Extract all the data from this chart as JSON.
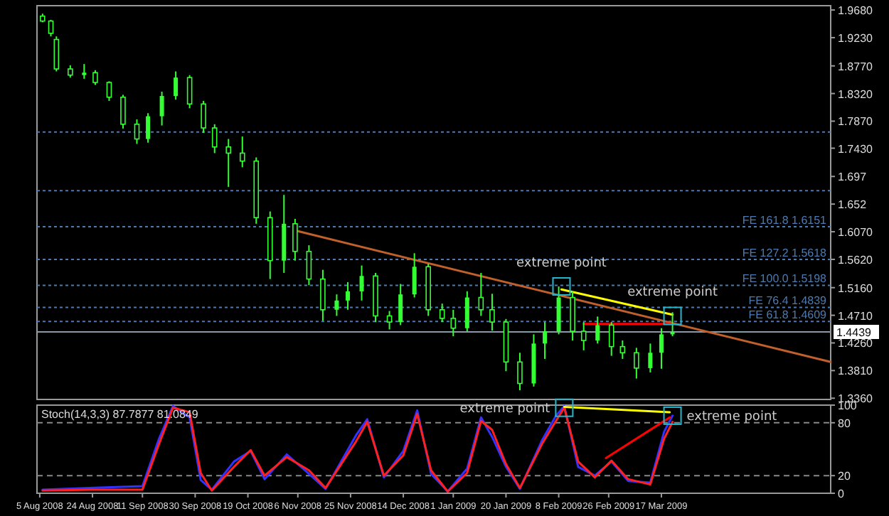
{
  "chart_data": [
    {
      "type": "candlestick",
      "color": "#33ff33",
      "tick_labels": "y",
      "xlim": [
        "2008-08-04",
        "2009-05-17"
      ],
      "ylim": [
        1.334,
        1.975
      ],
      "x": [
        "2008-08-06",
        "2008-08-09",
        "2008-08-11",
        "2008-08-16",
        "2008-08-21",
        "2008-08-25",
        "2008-08-30",
        "2008-09-04",
        "2008-09-09",
        "2008-09-13",
        "2008-09-18",
        "2008-09-23",
        "2008-09-28",
        "2008-10-03",
        "2008-10-07",
        "2008-10-12",
        "2008-10-17",
        "2008-10-22",
        "2008-10-27",
        "2008-11-01",
        "2008-11-05",
        "2008-11-10",
        "2008-11-15",
        "2008-11-20",
        "2008-11-24",
        "2008-11-29",
        "2008-12-04",
        "2008-12-09",
        "2008-12-13",
        "2008-12-18",
        "2008-12-23",
        "2008-12-28",
        "2009-01-01",
        "2009-01-06",
        "2009-01-11",
        "2009-01-15",
        "2009-01-20",
        "2009-01-25",
        "2009-01-30",
        "2009-02-03",
        "2009-02-08",
        "2009-02-13",
        "2009-02-17",
        "2009-02-22",
        "2009-02-27",
        "2009-03-03",
        "2009-03-08",
        "2009-03-13",
        "2009-03-17",
        "2009-03-21"
      ],
      "ohlc": [
        [
          1.958,
          1.962,
          1.948,
          1.95
        ],
        [
          1.95,
          1.952,
          1.925,
          1.93
        ],
        [
          1.92,
          1.925,
          1.868,
          1.872
        ],
        [
          1.872,
          1.878,
          1.858,
          1.862
        ],
        [
          1.862,
          1.88,
          1.856,
          1.866
        ],
        [
          1.866,
          1.87,
          1.846,
          1.85
        ],
        [
          1.85,
          1.852,
          1.82,
          1.826
        ],
        [
          1.826,
          1.83,
          1.775,
          1.782
        ],
        [
          1.782,
          1.79,
          1.75,
          1.758
        ],
        [
          1.758,
          1.8,
          1.752,
          1.795
        ],
        [
          1.795,
          1.835,
          1.78,
          1.828
        ],
        [
          1.828,
          1.868,
          1.822,
          1.858
        ],
        [
          1.858,
          1.862,
          1.808,
          1.815
        ],
        [
          1.815,
          1.82,
          1.768,
          1.776
        ],
        [
          1.776,
          1.782,
          1.735,
          1.745
        ],
        [
          1.745,
          1.758,
          1.68,
          1.735
        ],
        [
          1.735,
          1.762,
          1.712,
          1.722
        ],
        [
          1.722,
          1.728,
          1.62,
          1.63
        ],
        [
          1.63,
          1.64,
          1.53,
          1.56
        ],
        [
          1.56,
          1.667,
          1.54,
          1.62
        ],
        [
          1.62,
          1.628,
          1.56,
          1.575
        ],
        [
          1.575,
          1.585,
          1.52,
          1.53
        ],
        [
          1.53,
          1.545,
          1.462,
          1.48
        ],
        [
          1.48,
          1.505,
          1.47,
          1.495
        ],
        [
          1.495,
          1.525,
          1.48,
          1.51
        ],
        [
          1.51,
          1.552,
          1.495,
          1.535
        ],
        [
          1.535,
          1.54,
          1.46,
          1.47
        ],
        [
          1.47,
          1.478,
          1.448,
          1.46
        ],
        [
          1.46,
          1.522,
          1.455,
          1.505
        ],
        [
          1.505,
          1.572,
          1.5,
          1.55
        ],
        [
          1.55,
          1.555,
          1.47,
          1.48
        ],
        [
          1.48,
          1.49,
          1.46,
          1.466
        ],
        [
          1.466,
          1.48,
          1.437,
          1.45
        ],
        [
          1.45,
          1.51,
          1.445,
          1.5
        ],
        [
          1.5,
          1.54,
          1.47,
          1.48
        ],
        [
          1.48,
          1.506,
          1.446,
          1.46
        ],
        [
          1.46,
          1.465,
          1.38,
          1.395
        ],
        [
          1.395,
          1.41,
          1.349,
          1.36
        ],
        [
          1.36,
          1.44,
          1.355,
          1.425
        ],
        [
          1.425,
          1.46,
          1.4,
          1.445
        ],
        [
          1.445,
          1.518,
          1.44,
          1.5
        ],
        [
          1.5,
          1.51,
          1.43,
          1.445
        ],
        [
          1.445,
          1.46,
          1.414,
          1.43
        ],
        [
          1.43,
          1.469,
          1.425,
          1.455
        ],
        [
          1.455,
          1.46,
          1.405,
          1.42
        ],
        [
          1.42,
          1.43,
          1.4,
          1.41
        ],
        [
          1.41,
          1.418,
          1.368,
          1.385
        ],
        [
          1.385,
          1.425,
          1.378,
          1.41
        ],
        [
          1.41,
          1.45,
          1.384,
          1.44
        ],
        [
          1.44,
          1.476,
          1.437,
          1.4439
        ]
      ],
      "series": [
        {
          "type": "line",
          "color": "#c0602a",
          "x": [
            "2008-11-05",
            "2009-05-17"
          ],
          "values": [
            1.609,
            1.395
          ]
        },
        {
          "type": "line",
          "color": "#ffff00",
          "x": [
            "2009-02-09",
            "2009-03-21"
          ],
          "values": [
            1.513,
            1.472
          ]
        },
        {
          "type": "line",
          "color": "#ff0000",
          "x": [
            "2009-02-17",
            "2009-03-21"
          ],
          "values": [
            1.457,
            1.457
          ]
        }
      ],
      "yticks": [
        {
          "value": 1.968,
          "label": "1.9680"
        },
        {
          "value": 1.923,
          "label": "1.9230"
        },
        {
          "value": 1.877,
          "label": "1.8770"
        },
        {
          "value": 1.832,
          "label": "1.8320"
        },
        {
          "value": 1.787,
          "label": "1.7870"
        },
        {
          "value": 1.743,
          "label": "1.7430"
        },
        1.697,
        1.652,
        {
          "value": 1.607,
          "label": "1.6070"
        },
        {
          "value": 1.562,
          "label": "1.5620"
        },
        {
          "value": 1.516,
          "label": "1.5160"
        },
        {
          "value": 1.471,
          "label": "1.4710"
        },
        {
          "value": 1.426,
          "label": "1.4260"
        },
        {
          "value": 1.381,
          "label": "1.3810"
        },
        {
          "value": 1.336,
          "label": "1.3360"
        }
      ],
      "ref_lines": [
        {
          "axis": "y",
          "value": 1.7693,
          "color": "#4d7ab0",
          "line_style": "dotted"
        },
        {
          "axis": "y",
          "value": 1.674,
          "color": "#4d7ab0",
          "line_style": "dotted"
        },
        {
          "axis": "y",
          "value": 1.6151,
          "label": "FE 161.8 1.6151",
          "color": "#4d7ab0",
          "line_style": "dotted"
        },
        {
          "axis": "y",
          "value": 1.5618,
          "label": "FE 127.2 1.5618",
          "color": "#4d7ab0",
          "line_style": "dotted"
        },
        {
          "axis": "y",
          "value": 1.5198,
          "label": "FE 100.0 1.5198",
          "color": "#4d7ab0",
          "line_style": "dotted"
        },
        {
          "axis": "y",
          "value": 1.4839,
          "label": "FE 76.4 1.4839",
          "color": "#4d7ab0",
          "line_style": "dotted"
        },
        {
          "axis": "y",
          "value": 1.4609,
          "label": "FE 61.8 1.4609",
          "color": "#4d7ab0",
          "line_style": "dotted"
        },
        {
          "axis": "y",
          "value": 1.4439,
          "label": "1.4439",
          "color": "#8899aa",
          "line_style": "solid"
        }
      ],
      "annotations": [
        {
          "text": "extreme point",
          "x": "2009-02-09",
          "y": 1.518
        },
        {
          "text": "extreme point",
          "x": "2009-03-21",
          "y": 1.47
        }
      ]
    },
    {
      "type": "line",
      "title": "Stoch(14,3,3) 87.7877 81.0849",
      "xlim": [
        "2008-08-04",
        "2009-05-17"
      ],
      "ylim": [
        0,
        100
      ],
      "yticks": [
        0,
        20,
        80,
        100
      ],
      "x": [
        "2008-08-06",
        "2008-08-23",
        "2008-09-11",
        "2008-09-17",
        "2008-09-22",
        "2008-09-28",
        "2008-10-02",
        "2008-10-06",
        "2008-10-14",
        "2008-10-20",
        "2008-10-25",
        "2008-11-02",
        "2008-11-10",
        "2008-11-16",
        "2008-11-27",
        "2008-12-01",
        "2008-12-07",
        "2008-12-14",
        "2008-12-19",
        "2008-12-24",
        "2008-12-30",
        "2009-01-06",
        "2009-01-11",
        "2009-01-15",
        "2009-01-20",
        "2009-01-25",
        "2009-02-02",
        "2009-02-07",
        "2009-02-10",
        "2009-02-15",
        "2009-02-21",
        "2009-02-27",
        "2009-03-05",
        "2009-03-13",
        "2009-03-18",
        "2009-03-21"
      ],
      "xticks": [
        {
          "value": "2008-08-05",
          "label": "5 Aug 2008"
        },
        {
          "value": "2008-08-24",
          "label": "24 Aug 2008"
        },
        {
          "value": "2008-09-11",
          "label": "11 Sep 2008"
        },
        {
          "value": "2008-09-30",
          "label": "30 Sep 2008"
        },
        {
          "value": "2008-10-19",
          "label": "19 Oct 2008"
        },
        {
          "value": "2008-11-06",
          "label": "6 Nov 2008"
        },
        {
          "value": "2008-11-25",
          "label": "25 Nov 2008"
        },
        {
          "value": "2008-12-14",
          "label": "14 Dec 2008"
        },
        {
          "value": "2009-01-01",
          "label": "1 Jan 2009"
        },
        {
          "value": "2009-01-20",
          "label": "20 Jan 2009"
        },
        {
          "value": "2009-02-08",
          "label": "8 Feb 2009"
        },
        {
          "value": "2009-02-26",
          "label": "26 Feb 2009"
        },
        {
          "value": "2009-03-17",
          "label": "17 Mar 2009"
        }
      ],
      "series": [
        {
          "color": "#3333ff",
          "values": [
            4,
            6,
            8,
            62,
            99,
            86,
            15,
            4,
            36,
            48,
            16,
            44,
            22,
            5,
            66,
            84,
            18,
            48,
            94,
            22,
            2,
            28,
            86,
            64,
            30,
            5,
            60,
            88,
            99,
            30,
            20,
            36,
            14,
            12,
            70,
            88
          ]
        },
        {
          "color": "#ff2020",
          "values": [
            3,
            4,
            4,
            56,
            97,
            92,
            23,
            3,
            30,
            49,
            20,
            41,
            26,
            6,
            59,
            81,
            20,
            43,
            90,
            26,
            2,
            23,
            82,
            72,
            33,
            6,
            56,
            82,
            97,
            36,
            18,
            37,
            16,
            10,
            62,
            81
          ]
        },
        {
          "type": "line",
          "color": "#ffff00",
          "x": [
            "2009-02-10",
            "2009-03-20"
          ],
          "values": [
            98,
            92
          ]
        },
        {
          "type": "line",
          "color": "#ff0000",
          "x": [
            "2009-02-25",
            "2009-03-20"
          ],
          "values": [
            40,
            86
          ]
        }
      ],
      "ref_lines": [
        {
          "axis": "y",
          "value": 80,
          "color": "#888888",
          "line_style": "dashed"
        },
        {
          "axis": "y",
          "value": 20,
          "color": "#888888",
          "line_style": "dashed"
        }
      ],
      "annotations": [
        {
          "text": "extreme point",
          "x": "2009-02-10",
          "y": 97
        },
        {
          "text": "extreme point",
          "x": "2009-03-21",
          "y": 88
        }
      ]
    }
  ]
}
